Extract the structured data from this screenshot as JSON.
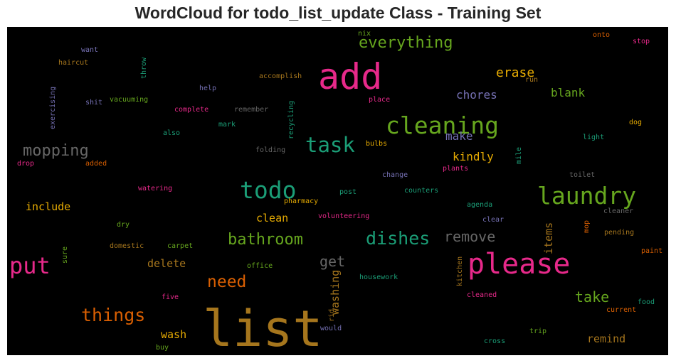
{
  "chart_data": {
    "type": "wordcloud",
    "title": "WordCloud for todo_list_update Class - Training Set",
    "background": "#000000",
    "words": [
      {
        "text": "list",
        "color": "#a6761d"
      },
      {
        "text": "add",
        "color": "#e7298a"
      },
      {
        "text": "please",
        "color": "#e7298a"
      },
      {
        "text": "todo",
        "color": "#1b9e77"
      },
      {
        "text": "laundry",
        "color": "#66a61e"
      },
      {
        "text": "cleaning",
        "color": "#66a61e"
      },
      {
        "text": "task",
        "color": "#1b9e77"
      },
      {
        "text": "everything",
        "color": "#66a61e"
      },
      {
        "text": "put",
        "color": "#e7298a"
      },
      {
        "text": "things",
        "color": "#d95f02"
      },
      {
        "text": "dishes",
        "color": "#1b9e77"
      },
      {
        "text": "bathroom",
        "color": "#66a61e"
      },
      {
        "text": "mopping",
        "color": "#666666"
      },
      {
        "text": "remove",
        "color": "#666666"
      },
      {
        "text": "need",
        "color": "#d95f02"
      },
      {
        "text": "take",
        "color": "#66a61e"
      },
      {
        "text": "get",
        "color": "#666666"
      },
      {
        "text": "erase",
        "color": "#e6ab02"
      },
      {
        "text": "chores",
        "color": "#7570b3"
      },
      {
        "text": "blank",
        "color": "#66a61e"
      },
      {
        "text": "make",
        "color": "#7570b3"
      },
      {
        "text": "kindly",
        "color": "#e6ab02"
      },
      {
        "text": "include",
        "color": "#e6ab02"
      },
      {
        "text": "clean",
        "color": "#e6ab02"
      },
      {
        "text": "delete",
        "color": "#a6761d"
      },
      {
        "text": "wash",
        "color": "#e6ab02"
      },
      {
        "text": "remind",
        "color": "#a6761d"
      },
      {
        "text": "items",
        "color": "#a6761d"
      },
      {
        "text": "washing",
        "color": "#a6761d"
      },
      {
        "text": "nix",
        "color": "#66a61e"
      },
      {
        "text": "want",
        "color": "#7570b3"
      },
      {
        "text": "onto",
        "color": "#d95f02"
      },
      {
        "text": "stop",
        "color": "#e7298a"
      },
      {
        "text": "haircut",
        "color": "#a6761d"
      },
      {
        "text": "throw",
        "color": "#1b9e77"
      },
      {
        "text": "accomplish",
        "color": "#a6761d"
      },
      {
        "text": "run",
        "color": "#a6761d"
      },
      {
        "text": "exercising",
        "color": "#7570b3"
      },
      {
        "text": "shit",
        "color": "#7570b3"
      },
      {
        "text": "vacuuming",
        "color": "#66a61e"
      },
      {
        "text": "help",
        "color": "#7570b3"
      },
      {
        "text": "recycling",
        "color": "#1b9e77"
      },
      {
        "text": "place",
        "color": "#e7298a"
      },
      {
        "text": "complete",
        "color": "#e7298a"
      },
      {
        "text": "remember",
        "color": "#666666"
      },
      {
        "text": "mark",
        "color": "#1b9e77"
      },
      {
        "text": "dog",
        "color": "#e6ab02"
      },
      {
        "text": "also",
        "color": "#1b9e77"
      },
      {
        "text": "folding",
        "color": "#666666"
      },
      {
        "text": "bulbs",
        "color": "#e6ab02"
      },
      {
        "text": "light",
        "color": "#1b9e77"
      },
      {
        "text": "mile",
        "color": "#1b9e77"
      },
      {
        "text": "drop",
        "color": "#e7298a"
      },
      {
        "text": "added",
        "color": "#d95f02"
      },
      {
        "text": "plants",
        "color": "#e7298a"
      },
      {
        "text": "change",
        "color": "#7570b3"
      },
      {
        "text": "toilet",
        "color": "#666666"
      },
      {
        "text": "watering",
        "color": "#e7298a"
      },
      {
        "text": "pharmacy",
        "color": "#e6ab02"
      },
      {
        "text": "post",
        "color": "#1b9e77"
      },
      {
        "text": "counters",
        "color": "#1b9e77"
      },
      {
        "text": "agenda",
        "color": "#1b9e77"
      },
      {
        "text": "cleaner",
        "color": "#666666"
      },
      {
        "text": "volunteering",
        "color": "#e7298a"
      },
      {
        "text": "clear",
        "color": "#7570b3"
      },
      {
        "text": "mop",
        "color": "#d95f02"
      },
      {
        "text": "pending",
        "color": "#a6761d"
      },
      {
        "text": "dry",
        "color": "#66a61e"
      },
      {
        "text": "domestic",
        "color": "#a6761d"
      },
      {
        "text": "carpet",
        "color": "#66a61e"
      },
      {
        "text": "paint",
        "color": "#d95f02"
      },
      {
        "text": "sure",
        "color": "#66a61e"
      },
      {
        "text": "office",
        "color": "#66a61e"
      },
      {
        "text": "housework",
        "color": "#1b9e77"
      },
      {
        "text": "kitchen",
        "color": "#a6761d"
      },
      {
        "text": "five",
        "color": "#e7298a"
      },
      {
        "text": "rid",
        "color": "#a6761d"
      },
      {
        "text": "cleaned",
        "color": "#e7298a"
      },
      {
        "text": "food",
        "color": "#1b9e77"
      },
      {
        "text": "current",
        "color": "#d95f02"
      },
      {
        "text": "would",
        "color": "#7570b3"
      },
      {
        "text": "trip",
        "color": "#66a61e"
      },
      {
        "text": "buy",
        "color": "#66a61e"
      },
      {
        "text": "cross",
        "color": "#1b9e77"
      }
    ]
  }
}
